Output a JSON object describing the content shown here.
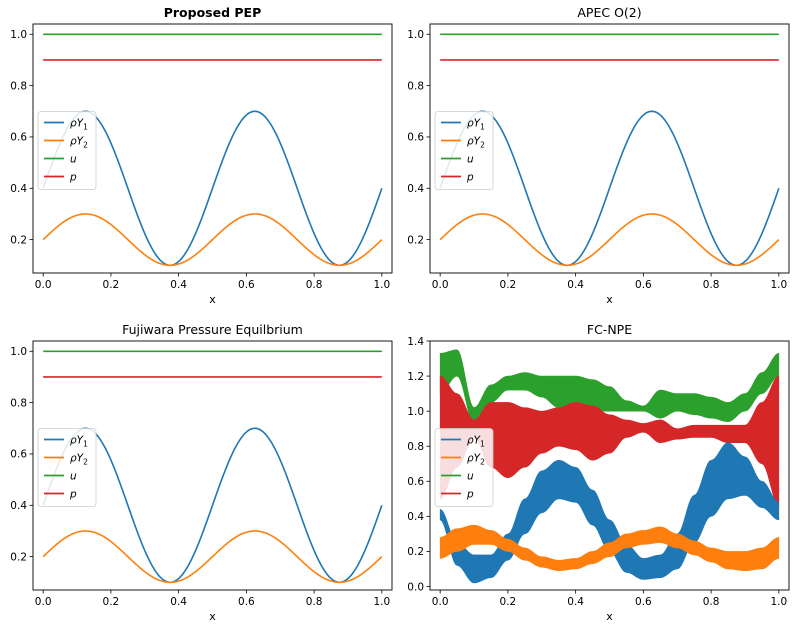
{
  "colors": {
    "rhoY1": "#1f77b4",
    "rhoY2": "#ff7f0e",
    "u": "#2ca02c",
    "p": "#d62728"
  },
  "chart_data": [
    {
      "type": "line",
      "title": "Proposed PEP",
      "title_bold": true,
      "xlabel": "x",
      "ylabel": "",
      "xlim": [
        -0.03,
        1.03
      ],
      "ylim": [
        0.07,
        1.04
      ],
      "xticks": [
        "0.0",
        "0.2",
        "0.4",
        "0.6",
        "0.8",
        "1.0"
      ],
      "yticks": [
        "0.2",
        "0.4",
        "0.6",
        "0.8",
        "1.0"
      ],
      "legend": {
        "loc": "center-left",
        "entries": [
          {
            "sym": "ρY",
            "sub": "1",
            "key": "rhoY1"
          },
          {
            "sym": "ρY",
            "sub": "2",
            "key": "rhoY2"
          },
          {
            "sym": "u",
            "sub": "",
            "key": "u"
          },
          {
            "sym": "p",
            "sub": "",
            "key": "p"
          }
        ]
      },
      "series": [
        {
          "name": "ρY1",
          "key": "rhoY1",
          "formula": "0.4 + 0.3*sin(4*pi*x)",
          "x_range": [
            0,
            1
          ]
        },
        {
          "name": "ρY2",
          "key": "rhoY2",
          "formula": "0.2 + 0.1*sin(4*pi*x)",
          "x_range": [
            0,
            1
          ]
        },
        {
          "name": "u",
          "key": "u",
          "constant": 1.0,
          "x_range": [
            0,
            1
          ]
        },
        {
          "name": "p",
          "key": "p",
          "constant": 0.9,
          "x_range": [
            0,
            1
          ]
        }
      ]
    },
    {
      "type": "line",
      "title": "APEC O(2)",
      "title_bold": false,
      "xlabel": "x",
      "ylabel": "",
      "xlim": [
        -0.03,
        1.03
      ],
      "ylim": [
        0.07,
        1.04
      ],
      "xticks": [
        "0.0",
        "0.2",
        "0.4",
        "0.6",
        "0.8",
        "1.0"
      ],
      "yticks": [
        "0.2",
        "0.4",
        "0.6",
        "0.8",
        "1.0"
      ],
      "legend": {
        "loc": "center-left",
        "entries": [
          {
            "sym": "ρY",
            "sub": "1",
            "key": "rhoY1"
          },
          {
            "sym": "ρY",
            "sub": "2",
            "key": "rhoY2"
          },
          {
            "sym": "u",
            "sub": "",
            "key": "u"
          },
          {
            "sym": "p",
            "sub": "",
            "key": "p"
          }
        ]
      },
      "series": [
        {
          "name": "ρY1",
          "key": "rhoY1",
          "formula": "0.4 + 0.3*sin(4*pi*x)",
          "x_range": [
            0,
            1
          ]
        },
        {
          "name": "ρY2",
          "key": "rhoY2",
          "formula": "0.2 + 0.1*sin(4*pi*x)",
          "x_range": [
            0,
            1
          ]
        },
        {
          "name": "u",
          "key": "u",
          "constant": 1.0,
          "x_range": [
            0,
            1
          ]
        },
        {
          "name": "p",
          "key": "p",
          "constant": 0.9,
          "x_range": [
            0,
            1
          ]
        }
      ]
    },
    {
      "type": "line",
      "title": "Fujiwara Pressure Equilbrium",
      "title_bold": false,
      "xlabel": "x",
      "ylabel": "",
      "xlim": [
        -0.03,
        1.03
      ],
      "ylim": [
        0.07,
        1.04
      ],
      "xticks": [
        "0.0",
        "0.2",
        "0.4",
        "0.6",
        "0.8",
        "1.0"
      ],
      "yticks": [
        "0.2",
        "0.4",
        "0.6",
        "0.8",
        "1.0"
      ],
      "legend": {
        "loc": "center-left",
        "entries": [
          {
            "sym": "ρY",
            "sub": "1",
            "key": "rhoY1"
          },
          {
            "sym": "ρY",
            "sub": "2",
            "key": "rhoY2"
          },
          {
            "sym": "u",
            "sub": "",
            "key": "u"
          },
          {
            "sym": "p",
            "sub": "",
            "key": "p"
          }
        ]
      },
      "series": [
        {
          "name": "ρY1",
          "key": "rhoY1",
          "formula": "0.4 + 0.3*sin(4*pi*x)",
          "x_range": [
            0,
            1
          ]
        },
        {
          "name": "ρY2",
          "key": "rhoY2",
          "formula": "0.2 + 0.1*sin(4*pi*x)",
          "x_range": [
            0,
            1
          ]
        },
        {
          "name": "u",
          "key": "u",
          "constant": 1.0,
          "x_range": [
            0,
            1
          ]
        },
        {
          "name": "p",
          "key": "p",
          "constant": 0.9,
          "x_range": [
            0,
            1
          ]
        }
      ]
    },
    {
      "type": "area",
      "title": "FC-NPE",
      "title_bold": false,
      "xlabel": "x",
      "ylabel": "",
      "xlim": [
        -0.03,
        1.03
      ],
      "ylim": [
        -0.02,
        1.4
      ],
      "xticks": [
        "0.0",
        "0.2",
        "0.4",
        "0.6",
        "0.8",
        "1.0"
      ],
      "yticks": [
        "0.0",
        "0.2",
        "0.4",
        "0.6",
        "0.8",
        "1.0",
        "1.2",
        "1.4"
      ],
      "note": "oscillating bands (filled min/max envelopes)",
      "legend": {
        "loc": "center-left",
        "entries": [
          {
            "sym": "ρY",
            "sub": "1",
            "key": "rhoY1"
          },
          {
            "sym": "ρY",
            "sub": "2",
            "key": "rhoY2"
          },
          {
            "sym": "u",
            "sub": "",
            "key": "u"
          },
          {
            "sym": "p",
            "sub": "",
            "key": "p"
          }
        ]
      },
      "bands": [
        {
          "key": "u",
          "x": [
            0.0,
            0.05,
            0.1,
            0.15,
            0.2,
            0.25,
            0.3,
            0.35,
            0.4,
            0.45,
            0.5,
            0.55,
            0.6,
            0.65,
            0.7,
            0.75,
            0.8,
            0.85,
            0.9,
            0.95,
            1.0
          ],
          "upper": [
            1.33,
            1.35,
            1.02,
            1.15,
            1.2,
            1.22,
            1.2,
            1.2,
            1.2,
            1.18,
            1.14,
            1.06,
            1.03,
            1.12,
            1.1,
            1.1,
            1.08,
            1.05,
            1.1,
            1.22,
            1.33
          ],
          "lower": [
            1.1,
            1.2,
            0.93,
            1.05,
            1.12,
            1.12,
            1.08,
            1.02,
            1.0,
            1.0,
            1.0,
            1.0,
            1.0,
            0.96,
            1.0,
            0.98,
            0.96,
            0.94,
            1.0,
            1.1,
            1.2
          ]
        },
        {
          "key": "p",
          "x": [
            0.0,
            0.05,
            0.1,
            0.15,
            0.2,
            0.25,
            0.3,
            0.35,
            0.4,
            0.45,
            0.5,
            0.55,
            0.6,
            0.65,
            0.7,
            0.75,
            0.8,
            0.85,
            0.9,
            0.95,
            1.0
          ],
          "upper": [
            1.2,
            1.1,
            0.95,
            1.05,
            1.05,
            1.02,
            1.0,
            1.02,
            1.05,
            1.03,
            0.98,
            0.95,
            0.93,
            0.95,
            0.9,
            0.92,
            0.92,
            0.92,
            0.92,
            1.05,
            1.2
          ],
          "lower": [
            0.5,
            0.68,
            0.85,
            0.68,
            0.62,
            0.68,
            0.76,
            0.8,
            0.78,
            0.72,
            0.76,
            0.85,
            0.88,
            0.82,
            0.84,
            0.85,
            0.85,
            0.82,
            0.82,
            0.7,
            0.46
          ]
        },
        {
          "key": "rhoY1",
          "x": [
            0.0,
            0.05,
            0.1,
            0.15,
            0.2,
            0.25,
            0.3,
            0.35,
            0.4,
            0.45,
            0.5,
            0.55,
            0.6,
            0.65,
            0.7,
            0.75,
            0.8,
            0.85,
            0.9,
            0.95,
            1.0
          ],
          "upper": [
            0.44,
            0.25,
            0.18,
            0.18,
            0.3,
            0.5,
            0.66,
            0.72,
            0.68,
            0.55,
            0.38,
            0.24,
            0.16,
            0.18,
            0.3,
            0.52,
            0.72,
            0.82,
            0.74,
            0.6,
            0.48
          ],
          "lower": [
            0.38,
            0.12,
            0.02,
            0.05,
            0.15,
            0.3,
            0.42,
            0.5,
            0.48,
            0.35,
            0.2,
            0.08,
            0.04,
            0.05,
            0.1,
            0.25,
            0.4,
            0.5,
            0.52,
            0.45,
            0.38
          ]
        },
        {
          "key": "rhoY2",
          "x": [
            0.0,
            0.05,
            0.1,
            0.15,
            0.2,
            0.25,
            0.3,
            0.35,
            0.4,
            0.45,
            0.5,
            0.55,
            0.6,
            0.65,
            0.7,
            0.75,
            0.8,
            0.85,
            0.9,
            0.95,
            1.0
          ],
          "upper": [
            0.28,
            0.33,
            0.35,
            0.32,
            0.27,
            0.22,
            0.17,
            0.15,
            0.16,
            0.2,
            0.25,
            0.3,
            0.32,
            0.34,
            0.3,
            0.26,
            0.22,
            0.2,
            0.2,
            0.22,
            0.28
          ],
          "lower": [
            0.16,
            0.2,
            0.24,
            0.24,
            0.2,
            0.15,
            0.11,
            0.09,
            0.1,
            0.13,
            0.17,
            0.22,
            0.24,
            0.25,
            0.22,
            0.18,
            0.14,
            0.1,
            0.09,
            0.1,
            0.16
          ]
        }
      ]
    }
  ]
}
